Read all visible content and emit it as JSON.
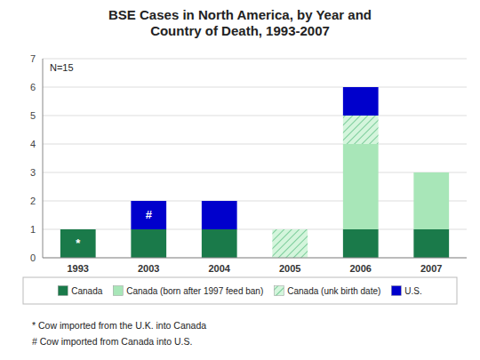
{
  "chart_data": {
    "type": "bar",
    "stacked": true,
    "title": "BSE Cases in North America, by Year and\nCountry of Death, 1993-2007",
    "note": "N=15",
    "categories": [
      "1993",
      "2003",
      "2004",
      "2005",
      "2006",
      "2007"
    ],
    "series": [
      {
        "name": "Canada",
        "color": "#1a7a4a",
        "values": [
          1,
          1,
          1,
          0,
          1,
          1
        ]
      },
      {
        "name": "Canada (born after 1997 feed ban)",
        "color": "#a8e6b8",
        "values": [
          0,
          0,
          0,
          0,
          3,
          2
        ]
      },
      {
        "name": "Canada (unk birth date)",
        "color": "#d4f5dc",
        "values": [
          0,
          0,
          0,
          1,
          1,
          0
        ]
      },
      {
        "name": "U.S.",
        "color": "#0000cc",
        "values": [
          0,
          1,
          1,
          0,
          1,
          0
        ]
      }
    ],
    "annotations": [
      {
        "category": "1993",
        "series": "Canada",
        "text": "*"
      },
      {
        "category": "2003",
        "series": "U.S.",
        "text": "#"
      }
    ],
    "footnotes": [
      "* Cow imported from the U.K. into Canada",
      "# Cow imported from Canada into U.S."
    ],
    "ylim": [
      0,
      7
    ],
    "yticks": [
      0,
      1,
      2,
      3,
      4,
      5,
      6,
      7
    ],
    "grid": true,
    "legend": "bottom"
  }
}
